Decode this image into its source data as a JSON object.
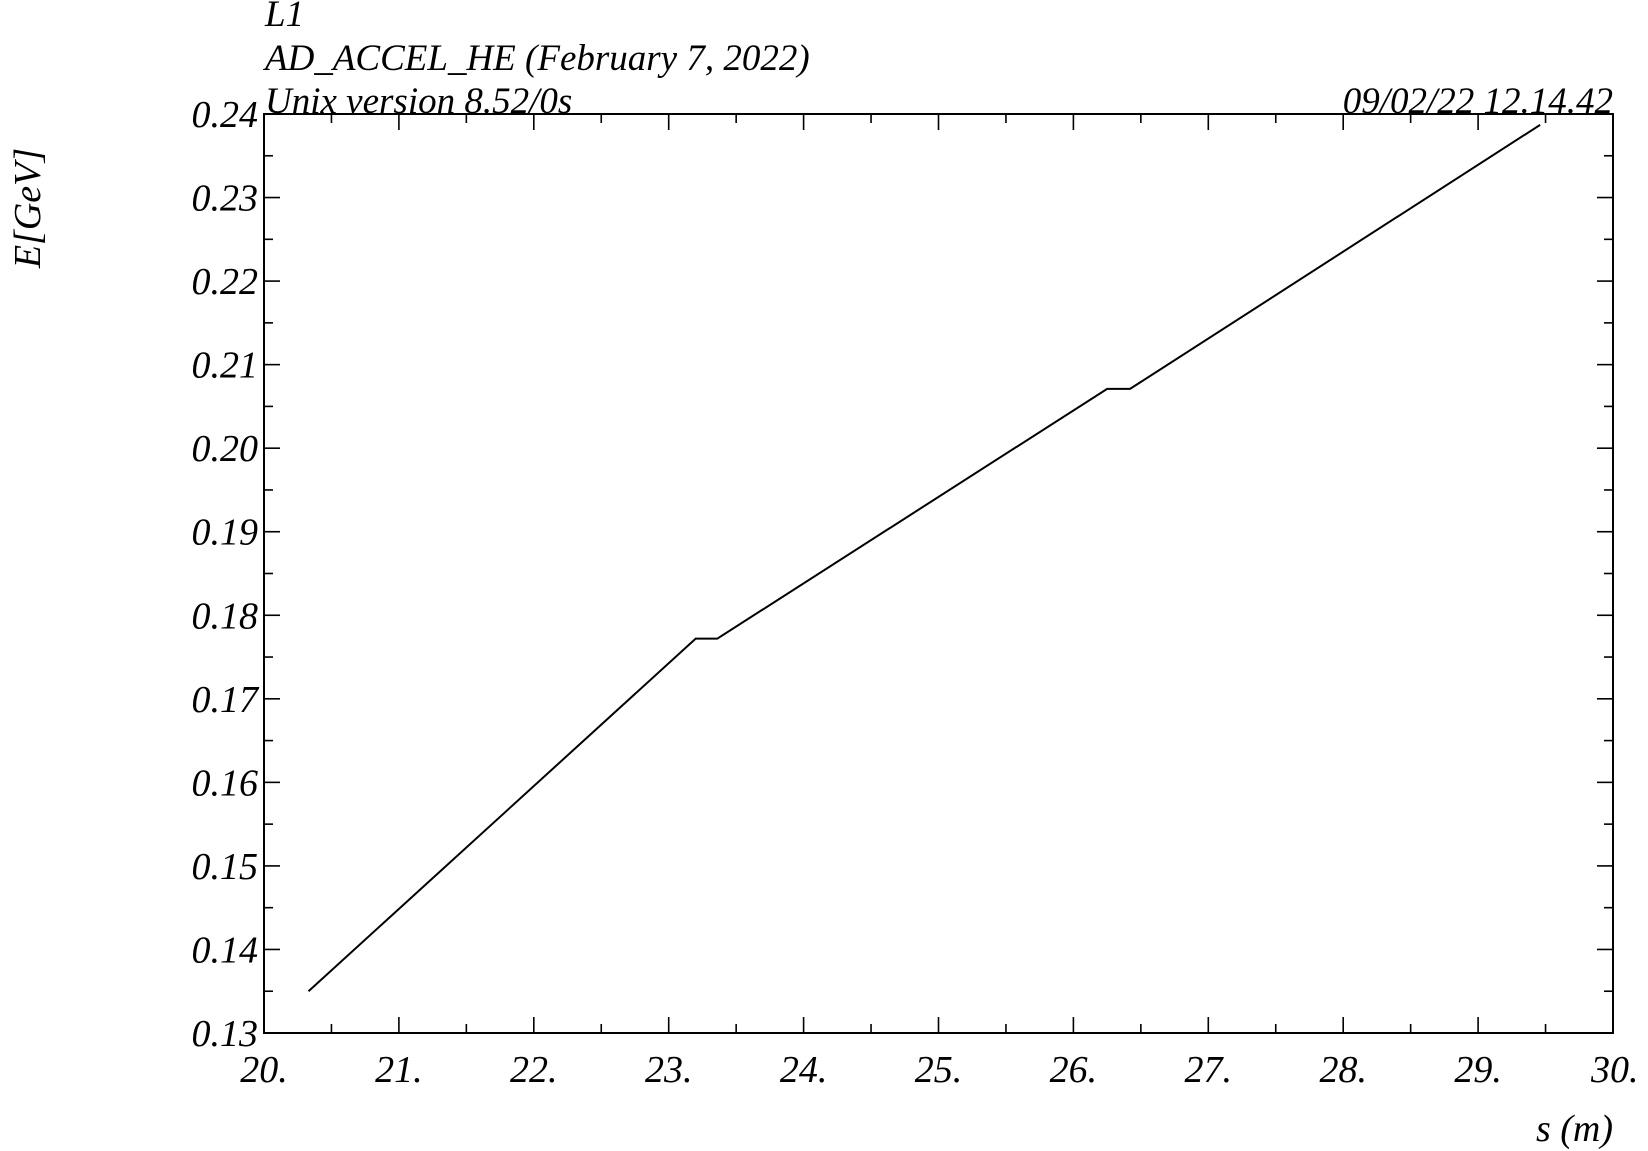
{
  "header": {
    "line1": "L1",
    "line2": "AD_ACCEL_HE (February 7, 2022)",
    "line3": "Unix version 8.52/0s",
    "timestamp": "09/02/22  12.14.42"
  },
  "colors": {
    "line": "#000000",
    "axes": "#000000",
    "background": "#ffffff"
  },
  "chart_data": {
    "type": "line",
    "title": "",
    "xlabel": "s (m)",
    "ylabel": "E[GeV]",
    "xlim": [
      20,
      30
    ],
    "ylim": [
      0.13,
      0.24
    ],
    "grid": false,
    "xticks": [
      20,
      21,
      22,
      23,
      24,
      25,
      26,
      27,
      28,
      29,
      30
    ],
    "xtick_labels": [
      "20.",
      "21.",
      "22.",
      "23.",
      "24.",
      "25.",
      "26.",
      "27.",
      "28.",
      "29.",
      "30."
    ],
    "yticks": [
      0.13,
      0.14,
      0.15,
      0.16,
      0.17,
      0.18,
      0.19,
      0.2,
      0.21,
      0.22,
      0.23,
      0.24
    ],
    "ytick_labels": [
      "0.13",
      "0.14",
      "0.15",
      "0.16",
      "0.17",
      "0.18",
      "0.19",
      "0.20",
      "0.21",
      "0.22",
      "0.23",
      "0.24"
    ],
    "series": [
      {
        "x": [
          20.33,
          23.2,
          23.36,
          26.25,
          26.42,
          29.46
        ],
        "y": [
          0.135,
          0.1772,
          0.1772,
          0.2071,
          0.2071,
          0.2387
        ]
      }
    ]
  }
}
